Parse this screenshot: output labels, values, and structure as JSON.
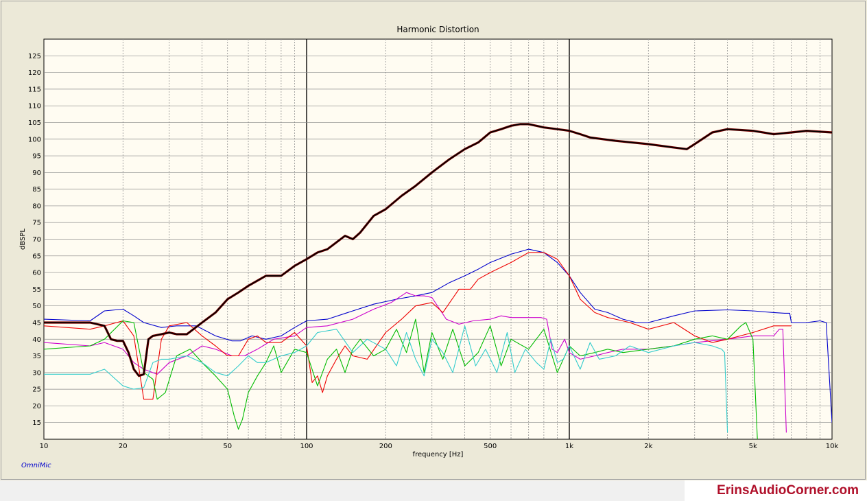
{
  "chart_data": {
    "type": "line",
    "title": "Harmonic Distortion",
    "xlabel": "frequency [Hz]",
    "ylabel": "dBSPL",
    "x_scale": "log",
    "xlim": [
      10,
      10000
    ],
    "ylim": [
      10,
      130
    ],
    "xticks": [
      {
        "v": 10,
        "label": "10"
      },
      {
        "v": 20,
        "label": "20"
      },
      {
        "v": 50,
        "label": "50"
      },
      {
        "v": 100,
        "label": "100"
      },
      {
        "v": 200,
        "label": "200"
      },
      {
        "v": 500,
        "label": "500"
      },
      {
        "v": 1000,
        "label": "1k"
      },
      {
        "v": 2000,
        "label": "2k"
      },
      {
        "v": 5000,
        "label": "5k"
      },
      {
        "v": 10000,
        "label": "10k"
      }
    ],
    "yticks": [
      15,
      20,
      25,
      30,
      35,
      40,
      45,
      50,
      55,
      60,
      65,
      70,
      75,
      80,
      85,
      90,
      95,
      100,
      105,
      110,
      115,
      120,
      125
    ],
    "grid": true,
    "background": "#fffcf2",
    "series": [
      {
        "color": "#0000cc",
        "x": [
          10,
          15,
          17,
          20,
          22,
          24,
          28,
          32,
          38,
          45,
          52,
          56,
          62,
          70,
          80,
          90,
          100,
          120,
          150,
          180,
          220,
          260,
          300,
          350,
          400,
          450,
          500,
          600,
          700,
          800,
          900,
          1000,
          1100,
          1250,
          1400,
          1600,
          1800,
          2000,
          2500,
          3000,
          4000,
          5000,
          6000,
          6600,
          6900,
          7000,
          8000,
          9000,
          9500,
          10000
        ],
        "y": [
          46,
          45.5,
          48.5,
          49,
          47,
          45,
          43.5,
          44,
          44,
          41,
          39.5,
          39.5,
          41,
          40,
          41,
          43.5,
          45.5,
          46,
          48.5,
          50.5,
          52,
          53,
          54,
          57,
          59,
          61,
          63,
          65.5,
          67,
          66,
          63,
          59,
          54,
          49,
          48,
          46,
          45,
          45,
          47,
          48.5,
          48.8,
          48.5,
          48,
          47.8,
          47.8,
          45,
          45,
          45.5,
          45,
          15
        ]
      },
      {
        "color": "#cc00cc",
        "x": [
          10,
          15,
          17,
          20,
          22,
          24,
          27,
          30,
          35,
          40,
          45,
          52,
          58,
          65,
          75,
          90,
          100,
          120,
          150,
          180,
          210,
          240,
          260,
          280,
          300,
          340,
          380,
          430,
          500,
          550,
          600,
          700,
          780,
          820,
          860,
          900,
          960,
          1000,
          1100,
          1250,
          1400,
          1600,
          2000,
          2500,
          3000,
          4000,
          5000,
          6000,
          6300,
          6500,
          6700
        ],
        "y": [
          39,
          38,
          39,
          37,
          33,
          31,
          29.5,
          33,
          35,
          38,
          37,
          35,
          35,
          37,
          40,
          41,
          43.5,
          44,
          46,
          49,
          51,
          54,
          53,
          53,
          52.5,
          46,
          44.5,
          45.5,
          46,
          47,
          46.5,
          46.5,
          46.5,
          46,
          37,
          36,
          40,
          36,
          34,
          35,
          36,
          37,
          37,
          38,
          39,
          40,
          41,
          41,
          43,
          43,
          12
        ]
      },
      {
        "color": "#ee0000",
        "x": [
          10,
          15,
          17,
          20,
          22,
          24,
          26,
          28,
          30,
          35,
          40,
          45,
          50,
          55,
          60,
          65,
          70,
          80,
          90,
          100,
          105,
          110,
          115,
          120,
          130,
          140,
          150,
          170,
          200,
          230,
          260,
          300,
          330,
          380,
          420,
          450,
          500,
          600,
          700,
          800,
          900,
          1000,
          1100,
          1250,
          1400,
          1500,
          1700,
          2000,
          2500,
          3000,
          3500,
          4000,
          5000,
          6000,
          7000
        ],
        "y": [
          44,
          43,
          44,
          45.5,
          41,
          22,
          22,
          40,
          44,
          45,
          41,
          38,
          35,
          35,
          40,
          41,
          39,
          39,
          42,
          38,
          27,
          29,
          24,
          29,
          34,
          38,
          35,
          34,
          42,
          46,
          50,
          51,
          48,
          55,
          55,
          58,
          60,
          63,
          66,
          66,
          64,
          59,
          52,
          48,
          46.5,
          46,
          45,
          43,
          45,
          41,
          39,
          40,
          42,
          44,
          44
        ]
      },
      {
        "color": "#00bb00",
        "x": [
          10,
          15,
          17,
          20,
          22,
          24,
          26,
          27,
          29,
          32,
          36,
          40,
          45,
          50,
          53,
          55,
          57,
          60,
          65,
          70,
          75,
          80,
          90,
          100,
          110,
          120,
          130,
          140,
          150,
          160,
          180,
          200,
          220,
          240,
          260,
          280,
          300,
          330,
          360,
          400,
          450,
          500,
          550,
          600,
          700,
          800,
          900,
          1000,
          1100,
          1250,
          1400,
          1600,
          2000,
          2500,
          3000,
          3500,
          4000,
          4500,
          4700,
          5000,
          5200
        ],
        "y": [
          37,
          38,
          40,
          45.5,
          45,
          30,
          28,
          22,
          24,
          35,
          37,
          33,
          29,
          25,
          17,
          13,
          16,
          24,
          29,
          33,
          38,
          30,
          37,
          36,
          26,
          34,
          37,
          30,
          37,
          40,
          35,
          37,
          43,
          36,
          46,
          30,
          42,
          34,
          43,
          32,
          36,
          44,
          32,
          40,
          37,
          43,
          30,
          38,
          35,
          36,
          37,
          36,
          37,
          38,
          40,
          41,
          40,
          44,
          45,
          40,
          10
        ]
      },
      {
        "color": "#33cccc",
        "x": [
          10,
          15,
          17,
          20,
          22,
          24,
          26,
          28,
          30,
          35,
          40,
          45,
          50,
          55,
          60,
          65,
          70,
          80,
          90,
          100,
          110,
          130,
          150,
          170,
          200,
          220,
          240,
          260,
          280,
          300,
          330,
          360,
          400,
          440,
          480,
          530,
          580,
          620,
          680,
          750,
          800,
          850,
          900,
          950,
          1000,
          1100,
          1200,
          1300,
          1500,
          1700,
          2000,
          2500,
          3000,
          3500,
          3800,
          3900,
          4000
        ],
        "y": [
          29.5,
          29.5,
          31,
          26,
          25,
          25.5,
          33,
          34,
          34,
          35,
          33,
          30,
          29,
          32,
          35,
          33,
          33,
          35,
          36,
          38,
          42,
          43,
          36,
          40,
          37,
          32,
          42,
          34,
          29,
          40,
          36,
          30,
          44,
          32,
          37,
          30,
          42,
          30,
          37,
          33,
          31,
          40,
          33,
          34,
          38,
          31,
          39,
          34,
          35,
          38,
          36,
          38,
          39,
          38,
          37,
          36,
          12
        ]
      },
      {
        "color": "#000000",
        "shadow": "#7a0000",
        "x": [
          10,
          15,
          17,
          18,
          19,
          20,
          21,
          22,
          23,
          24,
          25,
          26,
          28,
          30,
          32,
          35,
          40,
          45,
          50,
          55,
          60,
          70,
          80,
          90,
          100,
          110,
          120,
          140,
          150,
          160,
          180,
          200,
          230,
          260,
          300,
          350,
          400,
          450,
          500,
          550,
          600,
          650,
          700,
          750,
          800,
          900,
          1000,
          1100,
          1200,
          1500,
          2000,
          2500,
          2800,
          3000,
          3500,
          4000,
          5000,
          6000,
          7000,
          8000,
          10000
        ],
        "y": [
          45,
          45,
          44,
          40,
          39.5,
          39.5,
          36,
          31,
          29,
          29.5,
          40,
          41,
          41.5,
          42,
          41.5,
          41.5,
          45,
          48,
          52,
          54,
          56,
          59,
          59,
          62,
          64,
          66,
          67,
          71,
          70,
          72,
          77,
          79,
          83,
          86,
          90,
          94,
          97,
          99,
          102,
          103,
          104,
          104.5,
          104.5,
          104,
          103.5,
          103,
          102.5,
          101.5,
          100.5,
          99.5,
          98.5,
          97.5,
          97,
          98.5,
          102,
          103,
          102.5,
          101.5,
          102,
          102.5,
          102
        ]
      }
    ]
  },
  "footer": {
    "brand": "OmniMic",
    "watermark": "ErinsAudioCorner.com"
  }
}
